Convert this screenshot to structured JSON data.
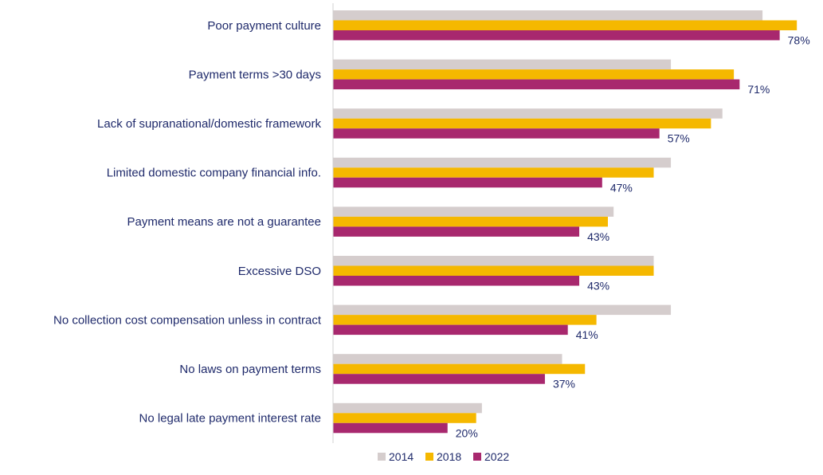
{
  "chart_data": {
    "type": "bar",
    "orientation": "horizontal",
    "categories": [
      "Poor payment culture",
      "Payment terms >30 days",
      "Lack of supranational/domestic framework",
      "Limited domestic company financial info.",
      "Payment means are not a guarantee",
      "Excessive DSO",
      "No collection cost compensation unless in contract",
      "No laws on payment terms",
      "No legal late payment interest rate"
    ],
    "series": [
      {
        "name": "2014",
        "color": "#d5cdcd",
        "values": [
          75,
          59,
          68,
          59,
          49,
          56,
          59,
          40,
          26
        ]
      },
      {
        "name": "2018",
        "color": "#f5b800",
        "values": [
          81,
          70,
          66,
          56,
          48,
          56,
          46,
          44,
          25
        ]
      },
      {
        "name": "2022",
        "color": "#a8286e",
        "values": [
          78,
          71,
          57,
          47,
          43,
          43,
          41,
          37,
          20
        ]
      }
    ],
    "data_labels_series": "2022",
    "data_labels": [
      "78%",
      "71%",
      "57%",
      "47%",
      "43%",
      "43%",
      "41%",
      "37%",
      "20%"
    ],
    "xlim": [
      0,
      85
    ],
    "grid": false,
    "legend_position": "bottom",
    "title": "",
    "xlabel": "",
    "ylabel": ""
  }
}
